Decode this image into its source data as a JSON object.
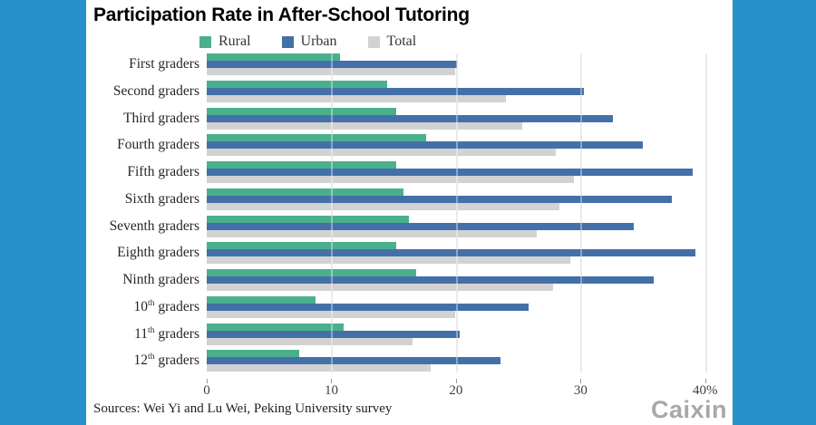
{
  "page": {
    "side_color": "#2791cb",
    "content_bg": "#ffffff"
  },
  "header": {
    "title": "Participation Rate in After-School Tutoring"
  },
  "chart_data": {
    "type": "bar",
    "orientation": "horizontal",
    "title": "Participation Rate in After-School Tutoring",
    "xlabel": "",
    "ylabel": "",
    "unit": "%",
    "grid": true,
    "legend_position": "top",
    "xlim": [
      0,
      42.2
    ],
    "x_ticks": [
      {
        "value": 0,
        "label": "0"
      },
      {
        "value": 10,
        "label": "10"
      },
      {
        "value": 20,
        "label": "20"
      },
      {
        "value": 30,
        "label": "30"
      },
      {
        "value": 40,
        "label": "40%"
      }
    ],
    "categories": [
      "First graders",
      "Second graders",
      "Third graders",
      "Fourth graders",
      "Fifth graders",
      "Sixth graders",
      "Seventh graders",
      "Eighth graders",
      "Ninth graders",
      "10th graders",
      "11th graders",
      "12th graders"
    ],
    "series": [
      {
        "name": "Rural",
        "color": "#4ab08c",
        "values": [
          10.7,
          14.5,
          15.2,
          17.6,
          15.2,
          15.8,
          16.2,
          15.2,
          16.8,
          8.7,
          11.0,
          7.4
        ]
      },
      {
        "name": "Urban",
        "color": "#4470a9",
        "values": [
          20.1,
          30.3,
          32.6,
          35.0,
          39.0,
          37.3,
          34.3,
          39.2,
          35.9,
          25.8,
          20.3,
          23.6
        ]
      },
      {
        "name": "Total",
        "color": "#d2d2d2",
        "values": [
          19.9,
          24.0,
          25.3,
          28.0,
          29.5,
          28.3,
          26.5,
          29.2,
          27.8,
          19.9,
          16.5,
          18.0
        ]
      }
    ]
  },
  "footer": {
    "source": "Sources: Wei Yi and Lu Wei, Peking University survey",
    "logo": "Caixin"
  }
}
